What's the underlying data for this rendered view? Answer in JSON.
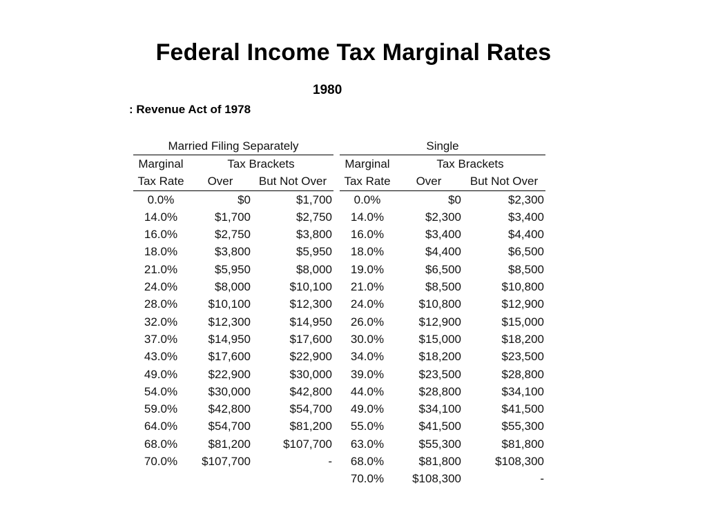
{
  "title": "Federal Income Tax Marginal Rates",
  "year": "1980",
  "law": ": Revenue Act of 1978",
  "tables": [
    {
      "group": "Married Filing Separately",
      "header": {
        "rate_top": "Marginal",
        "rate_bottom": "Tax Rate",
        "brackets": "Tax Brackets",
        "over": "Over",
        "but_not_over": "But Not Over"
      },
      "rows": [
        [
          "0.0%",
          "$0",
          "$1,700"
        ],
        [
          "14.0%",
          "$1,700",
          "$2,750"
        ],
        [
          "16.0%",
          "$2,750",
          "$3,800"
        ],
        [
          "18.0%",
          "$3,800",
          "$5,950"
        ],
        [
          "21.0%",
          "$5,950",
          "$8,000"
        ],
        [
          "24.0%",
          "$8,000",
          "$10,100"
        ],
        [
          "28.0%",
          "$10,100",
          "$12,300"
        ],
        [
          "32.0%",
          "$12,300",
          "$14,950"
        ],
        [
          "37.0%",
          "$14,950",
          "$17,600"
        ],
        [
          "43.0%",
          "$17,600",
          "$22,900"
        ],
        [
          "49.0%",
          "$22,900",
          "$30,000"
        ],
        [
          "54.0%",
          "$30,000",
          "$42,800"
        ],
        [
          "59.0%",
          "$42,800",
          "$54,700"
        ],
        [
          "64.0%",
          "$54,700",
          "$81,200"
        ],
        [
          "68.0%",
          "$81,200",
          "$107,700"
        ],
        [
          "70.0%",
          "$107,700",
          "-"
        ]
      ]
    },
    {
      "group": "Single",
      "header": {
        "rate_top": "Marginal",
        "rate_bottom": "Tax Rate",
        "brackets": "Tax Brackets",
        "over": "Over",
        "but_not_over": "But Not Over"
      },
      "rows": [
        [
          "0.0%",
          "$0",
          "$2,300"
        ],
        [
          "14.0%",
          "$2,300",
          "$3,400"
        ],
        [
          "16.0%",
          "$3,400",
          "$4,400"
        ],
        [
          "18.0%",
          "$4,400",
          "$6,500"
        ],
        [
          "19.0%",
          "$6,500",
          "$8,500"
        ],
        [
          "21.0%",
          "$8,500",
          "$10,800"
        ],
        [
          "24.0%",
          "$10,800",
          "$12,900"
        ],
        [
          "26.0%",
          "$12,900",
          "$15,000"
        ],
        [
          "30.0%",
          "$15,000",
          "$18,200"
        ],
        [
          "34.0%",
          "$18,200",
          "$23,500"
        ],
        [
          "39.0%",
          "$23,500",
          "$28,800"
        ],
        [
          "44.0%",
          "$28,800",
          "$34,100"
        ],
        [
          "49.0%",
          "$34,100",
          "$41,500"
        ],
        [
          "55.0%",
          "$41,500",
          "$55,300"
        ],
        [
          "63.0%",
          "$55,300",
          "$81,800"
        ],
        [
          "68.0%",
          "$81,800",
          "$108,300"
        ],
        [
          "70.0%",
          "$108,300",
          "-"
        ]
      ]
    }
  ]
}
